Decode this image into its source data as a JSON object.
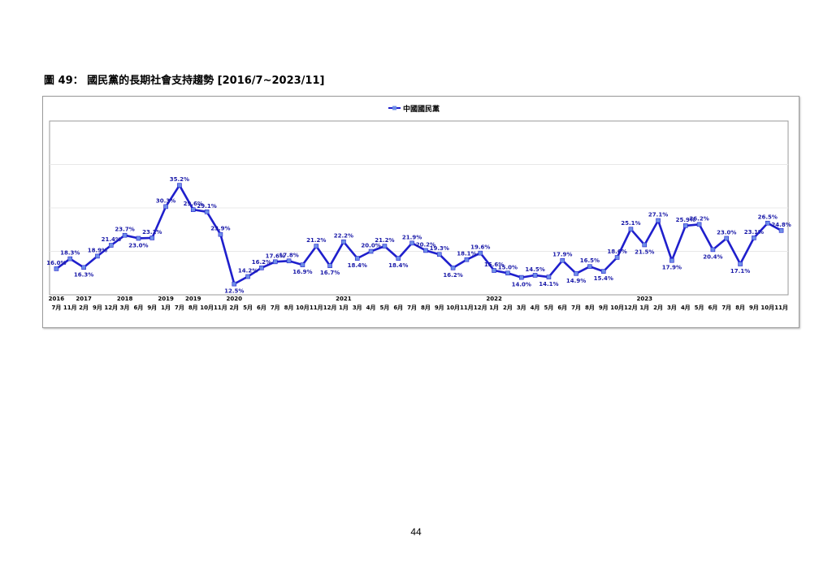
{
  "page": {
    "title": "圖 49：  國民黨的長期社會支持趨勢  [2016/7~2023/11]",
    "page_number": "44"
  },
  "colors": {
    "series": "#1f1fcc",
    "marker": "#6f8fe8",
    "label": "#1a1aa8",
    "grid": "#e8e8e8",
    "axis_text": "#000000"
  },
  "chart_data": {
    "type": "line",
    "title": "",
    "xlabel": "",
    "ylabel": "",
    "ylim": [
      10,
      50
    ],
    "grid": true,
    "legend_position": "top-center",
    "series": [
      {
        "name": "中國國民黨",
        "values": [
          16.0,
          18.3,
          16.3,
          18.9,
          21.4,
          23.7,
          23.0,
          23.1,
          30.3,
          35.2,
          29.6,
          29.1,
          23.9,
          12.5,
          14.2,
          16.2,
          17.6,
          17.8,
          16.9,
          21.2,
          16.7,
          22.2,
          18.4,
          20.0,
          21.2,
          18.4,
          21.9,
          20.2,
          19.3,
          16.2,
          18.1,
          19.6,
          15.6,
          15.0,
          14.0,
          14.5,
          14.1,
          17.9,
          14.9,
          16.5,
          15.4,
          18.6,
          25.1,
          21.5,
          27.1,
          17.9,
          25.9,
          26.2,
          20.4,
          23.0,
          17.1,
          23.1,
          26.5,
          24.8
        ],
        "labels": [
          "16.0%",
          "18.3%",
          "16.3%",
          "18.9%",
          "21.4%",
          "23.7%",
          "23.0%",
          "23.1%",
          "30.3%",
          "35.2%",
          "29.6%",
          "29.1%",
          "23.9%",
          "12.5%",
          "14.2%",
          "16.2%",
          "17.6%",
          "17.8%",
          "16.9%",
          "21.2%",
          "16.7%",
          "22.2%",
          "18.4%",
          "20.0%",
          "21.2%",
          "18.4%",
          "21.9%",
          "20.2%",
          "19.3%",
          "16.2%",
          "18.1%",
          "19.6%",
          "15.6%",
          "15.0%",
          "14.0%",
          "14.5%",
          "14.1%",
          "17.9%",
          "14.9%",
          "16.5%",
          "15.4%",
          "18.6%",
          "25.1%",
          "21.5%",
          "27.1%",
          "17.9%",
          "25.9%",
          "26.2%",
          "20.4%",
          "23.0%",
          "17.1%",
          "23.1%",
          "26.5%",
          "24.8%"
        ]
      }
    ],
    "categories": [
      "7月",
      "11月",
      "2月",
      "9月",
      "12月",
      "3月",
      "6月",
      "9月",
      "1月",
      "7月",
      "8月",
      "10月",
      "11月",
      "2月",
      "5月",
      "6月",
      "7月",
      "8月",
      "10月",
      "11月",
      "12月",
      "1月",
      "3月",
      "4月",
      "5月",
      "6月",
      "7月",
      "8月",
      "9月",
      "10月",
      "11月",
      "12月",
      "1月",
      "2月",
      "3月",
      "4月",
      "5月",
      "6月",
      "7月",
      "8月",
      "9月",
      "10月",
      "12月",
      "1月",
      "2月",
      "3月",
      "4月",
      "5月",
      "6月",
      "7月",
      "8月",
      "9月",
      "10月",
      "11月"
    ],
    "year_labels": [
      {
        "index": 0,
        "year": "2016"
      },
      {
        "index": 2,
        "year": "2017"
      },
      {
        "index": 5,
        "year": "2018"
      },
      {
        "index": 8,
        "year": "2019"
      },
      {
        "index": 10,
        "year": "2019"
      },
      {
        "index": 13,
        "year": "2020"
      },
      {
        "index": 21,
        "year": "2021"
      },
      {
        "index": 32,
        "year": "2022"
      },
      {
        "index": 43,
        "year": "2023"
      }
    ]
  }
}
